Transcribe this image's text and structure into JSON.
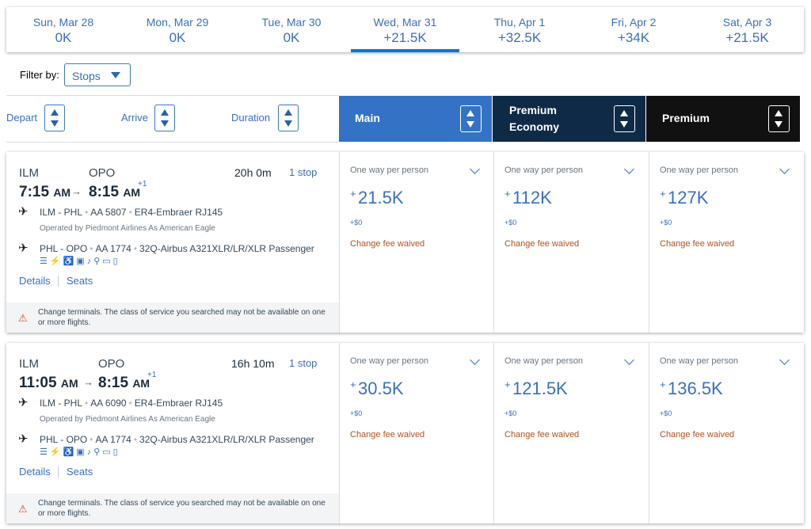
{
  "dates": [
    {
      "label": "Sun, Mar 28",
      "price": "0K"
    },
    {
      "label": "Mon, Mar 29",
      "price": "0K"
    },
    {
      "label": "Tue, Mar 30",
      "price": "0K"
    },
    {
      "label": "Wed, Mar 31",
      "price": "+21.5K",
      "selected": true
    },
    {
      "label": "Thu, Apr 1",
      "price": "+32.5K"
    },
    {
      "label": "Fri, Apr 2",
      "price": "+34K"
    },
    {
      "label": "Sat, Apr 3",
      "price": "+21.5K"
    }
  ],
  "filter": {
    "label": "Filter by:",
    "stops": "Stops"
  },
  "sort": {
    "depart": "Depart",
    "arrive": "Arrive",
    "duration": "Duration"
  },
  "cabins": {
    "main": "Main",
    "premium_economy_1": "Premium",
    "premium_economy_2": "Economy",
    "premium": "Premium"
  },
  "colors": {
    "main": "#3472c6",
    "premium_economy": "#0f2a47",
    "premium": "#111111",
    "accent": "#3a6fc2",
    "change_fee": "#b3501e"
  },
  "flights": [
    {
      "origin": "ILM",
      "destination": "OPO",
      "depart": "7:15",
      "depart_ampm": "AM",
      "arrive": "8:15",
      "arrive_ampm": "AM",
      "plus_day": "+1",
      "duration": "20h 0m",
      "stops": "1 stop",
      "seg1_route": "ILM - PHL",
      "seg1_flight": "AA 5807",
      "seg1_aircraft": "ER4-Embraer RJ145",
      "operated_by": "Operated by Piedmont Airlines As American Eagle",
      "seg2_route": "PHL - OPO",
      "seg2_flight": "AA 1774",
      "seg2_aircraft": "32Q-Airbus A321XLR/LR/XLR Passenger",
      "details": "Details",
      "seats": "Seats",
      "warning": "Change terminals. The class of service you searched may not be available on one or more flights.",
      "fares": [
        {
          "label": "One way per person",
          "plus": "+",
          "price": "21.5K",
          "tax": "+$0",
          "note": "Change fee waived"
        },
        {
          "label": "One way per person",
          "plus": "+",
          "price": "112K",
          "tax": "+$0",
          "note": "Change fee waived"
        },
        {
          "label": "One way per person",
          "plus": "+",
          "price": "127K",
          "tax": "+$0",
          "note": "Change fee waived"
        }
      ]
    },
    {
      "origin": "ILM",
      "destination": "OPO",
      "depart": "11:05",
      "depart_ampm": "AM",
      "arrive": "8:15",
      "arrive_ampm": "AM",
      "plus_day": "+1",
      "duration": "16h 10m",
      "stops": "1 stop",
      "seg1_route": "ILM - PHL",
      "seg1_flight": "AA 6090",
      "seg1_aircraft": "ER4-Embraer RJ145",
      "operated_by": "Operated by Piedmont Airlines As American Eagle",
      "seg2_route": "PHL - OPO",
      "seg2_flight": "AA 1774",
      "seg2_aircraft": "32Q-Airbus A321XLR/LR/XLR Passenger",
      "details": "Details",
      "seats": "Seats",
      "warning": "Change terminals. The class of service you searched may not be available on one or more flights.",
      "fares": [
        {
          "label": "One way per person",
          "plus": "+",
          "price": "30.5K",
          "tax": "+$0",
          "note": "Change fee waived"
        },
        {
          "label": "One way per person",
          "plus": "+",
          "price": "121.5K",
          "tax": "+$0",
          "note": "Change fee waived"
        },
        {
          "label": "One way per person",
          "plus": "+",
          "price": "136.5K",
          "tax": "+$0",
          "note": "Change fee waived"
        }
      ]
    }
  ],
  "amenity_icons": [
    "wifi-icon",
    "power-icon",
    "seat-icon",
    "entertainment-icon",
    "music-icon",
    "usb-icon",
    "tv-icon",
    "phone-icon"
  ]
}
